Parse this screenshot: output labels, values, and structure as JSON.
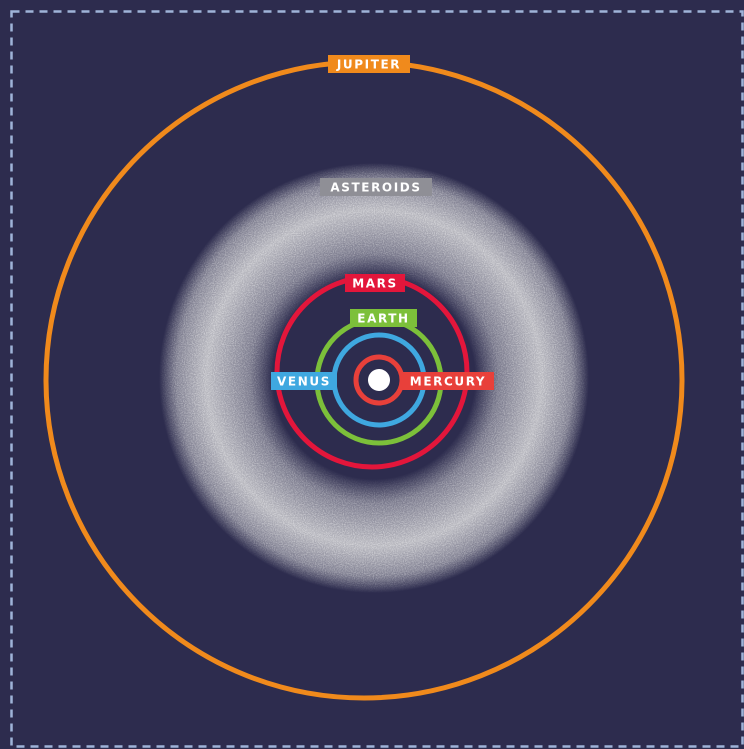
{
  "colors": {
    "background": "#2d2c4e",
    "frame": "#9fb3d8",
    "sun": "#ffffff",
    "belt": "#b8b8bf"
  },
  "sun": {
    "icon": "sun-icon"
  },
  "belt": {
    "label": "ASTEROIDS",
    "color": "#8f8f96"
  },
  "orbits": [
    {
      "key": "mercury",
      "label": "MERCURY",
      "color": "#e8403a"
    },
    {
      "key": "venus",
      "label": "VENUS",
      "color": "#3fa8e0"
    },
    {
      "key": "earth",
      "label": "EARTH",
      "color": "#7cc03a"
    },
    {
      "key": "mars",
      "label": "MARS",
      "color": "#e3163b"
    },
    {
      "key": "jupiter",
      "label": "JUPITER",
      "color": "#f08a1c"
    }
  ]
}
